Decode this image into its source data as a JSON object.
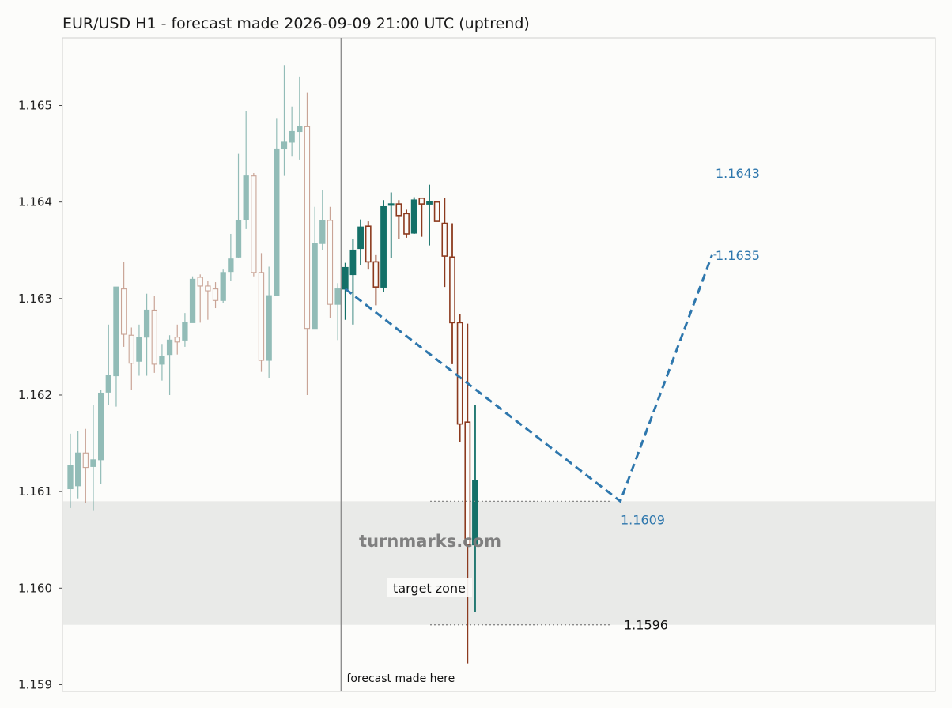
{
  "chart_data": {
    "type": "candlestick",
    "title": "EUR/USD H1 - forecast made 2026-09-09 21:00 UTC (uptrend)",
    "ylim": [
      1.15893,
      1.1657
    ],
    "x_count": 54,
    "yticks": [
      "1.159",
      "1.160",
      "1.161",
      "1.162",
      "1.163",
      "1.164",
      "1.165"
    ],
    "grid": false,
    "colors": {
      "up": "#147068",
      "down": "#8c3a1e",
      "forecast_line": "#2e77ad",
      "zone": "#e9eae8",
      "watermark": "#7b7b7b"
    },
    "history_candles": [
      {
        "o": 1.16103,
        "h": 1.1616,
        "l": 1.16083,
        "c": 1.16127
      },
      {
        "o": 1.16106,
        "h": 1.16163,
        "l": 1.16093,
        "c": 1.1614
      },
      {
        "o": 1.1614,
        "h": 1.16165,
        "l": 1.16088,
        "c": 1.16125
      },
      {
        "o": 1.16126,
        "h": 1.1619,
        "l": 1.1608,
        "c": 1.16133
      },
      {
        "o": 1.16133,
        "h": 1.16205,
        "l": 1.16108,
        "c": 1.16202
      },
      {
        "o": 1.16203,
        "h": 1.16273,
        "l": 1.1619,
        "c": 1.1622
      },
      {
        "o": 1.1622,
        "h": 1.16312,
        "l": 1.16188,
        "c": 1.16312
      },
      {
        "o": 1.1631,
        "h": 1.16338,
        "l": 1.1625,
        "c": 1.16263
      },
      {
        "o": 1.16262,
        "h": 1.1627,
        "l": 1.16205,
        "c": 1.16233
      },
      {
        "o": 1.16235,
        "h": 1.16273,
        "l": 1.1622,
        "c": 1.1626
      },
      {
        "o": 1.1626,
        "h": 1.16305,
        "l": 1.1622,
        "c": 1.16288
      },
      {
        "o": 1.16288,
        "h": 1.16303,
        "l": 1.16223,
        "c": 1.16232
      },
      {
        "o": 1.16232,
        "h": 1.16253,
        "l": 1.16215,
        "c": 1.1624
      },
      {
        "o": 1.16242,
        "h": 1.16262,
        "l": 1.162,
        "c": 1.16257
      },
      {
        "o": 1.1626,
        "h": 1.16273,
        "l": 1.16242,
        "c": 1.16255
      },
      {
        "o": 1.16257,
        "h": 1.16285,
        "l": 1.1625,
        "c": 1.16275
      },
      {
        "o": 1.16275,
        "h": 1.16323,
        "l": 1.16275,
        "c": 1.1632
      },
      {
        "o": 1.16322,
        "h": 1.16325,
        "l": 1.16275,
        "c": 1.16313
      },
      {
        "o": 1.16313,
        "h": 1.16318,
        "l": 1.16278,
        "c": 1.16308
      },
      {
        "o": 1.1631,
        "h": 1.16317,
        "l": 1.1629,
        "c": 1.16298
      },
      {
        "o": 1.16298,
        "h": 1.1633,
        "l": 1.16295,
        "c": 1.16327
      },
      {
        "o": 1.16328,
        "h": 1.16367,
        "l": 1.16318,
        "c": 1.16341
      },
      {
        "o": 1.16343,
        "h": 1.1645,
        "l": 1.16342,
        "c": 1.16381
      },
      {
        "o": 1.16382,
        "h": 1.16494,
        "l": 1.16372,
        "c": 1.16427
      },
      {
        "o": 1.16427,
        "h": 1.1643,
        "l": 1.16323,
        "c": 1.16327
      },
      {
        "o": 1.16327,
        "h": 1.16347,
        "l": 1.16224,
        "c": 1.16236
      },
      {
        "o": 1.16236,
        "h": 1.16333,
        "l": 1.16218,
        "c": 1.16303
      },
      {
        "o": 1.16303,
        "h": 1.16487,
        "l": 1.16303,
        "c": 1.16455
      },
      {
        "o": 1.16455,
        "h": 1.16542,
        "l": 1.16427,
        "c": 1.16462
      },
      {
        "o": 1.16462,
        "h": 1.16499,
        "l": 1.16447,
        "c": 1.16473
      },
      {
        "o": 1.16473,
        "h": 1.1653,
        "l": 1.16444,
        "c": 1.16478
      },
      {
        "o": 1.16478,
        "h": 1.16513,
        "l": 1.162,
        "c": 1.16269
      },
      {
        "o": 1.16269,
        "h": 1.16395,
        "l": 1.16269,
        "c": 1.16357
      },
      {
        "o": 1.16357,
        "h": 1.16412,
        "l": 1.1635,
        "c": 1.16381
      },
      {
        "o": 1.16381,
        "h": 1.16395,
        "l": 1.1628,
        "c": 1.16294
      },
      {
        "o": 1.16294,
        "h": 1.16316,
        "l": 1.16257,
        "c": 1.1631
      }
    ],
    "forecast_made_label": "forecast made here",
    "actual_candles": [
      {
        "o": 1.1631,
        "h": 1.16337,
        "l": 1.16278,
        "c": 1.16332
      },
      {
        "o": 1.16325,
        "h": 1.16362,
        "l": 1.16273,
        "c": 1.1635
      },
      {
        "o": 1.16352,
        "h": 1.16382,
        "l": 1.16335,
        "c": 1.16374
      },
      {
        "o": 1.16375,
        "h": 1.1638,
        "l": 1.1633,
        "c": 1.16338
      },
      {
        "o": 1.16338,
        "h": 1.16345,
        "l": 1.16293,
        "c": 1.16312
      },
      {
        "o": 1.16312,
        "h": 1.16402,
        "l": 1.16307,
        "c": 1.16395
      },
      {
        "o": 1.16397,
        "h": 1.1641,
        "l": 1.16342,
        "c": 1.16398
      },
      {
        "o": 1.16398,
        "h": 1.16402,
        "l": 1.16362,
        "c": 1.16386
      },
      {
        "o": 1.16388,
        "h": 1.16392,
        "l": 1.16363,
        "c": 1.16367
      },
      {
        "o": 1.16368,
        "h": 1.16405,
        "l": 1.16367,
        "c": 1.16402
      },
      {
        "o": 1.16404,
        "h": 1.16404,
        "l": 1.16364,
        "c": 1.16398
      },
      {
        "o": 1.16398,
        "h": 1.16418,
        "l": 1.16355,
        "c": 1.164
      },
      {
        "o": 1.164,
        "h": 1.164,
        "l": 1.1638,
        "c": 1.1638
      },
      {
        "o": 1.16378,
        "h": 1.16404,
        "l": 1.16312,
        "c": 1.16344
      },
      {
        "o": 1.16343,
        "h": 1.16378,
        "l": 1.16232,
        "c": 1.16275
      },
      {
        "o": 1.16275,
        "h": 1.16284,
        "l": 1.16151,
        "c": 1.1617
      },
      {
        "o": 1.16172,
        "h": 1.16274,
        "l": 1.15922,
        "c": 1.16045
      },
      {
        "o": 1.16045,
        "h": 1.1619,
        "l": 1.15975,
        "c": 1.16111
      }
    ],
    "forecast_path": [
      {
        "i": 36,
        "y": 1.1631
      },
      {
        "i": 72,
        "y": 1.1609
      },
      {
        "i": 84,
        "y": 1.16345
      }
    ],
    "forecast_labels": [
      {
        "text": "1.1643",
        "y": 1.1643
      },
      {
        "text": "1.1635",
        "y": 1.16345
      },
      {
        "text": "1.1609",
        "y": 1.1609
      }
    ],
    "target_zone": {
      "low": 1.15962,
      "high": 1.1609,
      "label": "target zone",
      "low_label": "1.1596"
    },
    "watermark": "turnmarks.com"
  }
}
